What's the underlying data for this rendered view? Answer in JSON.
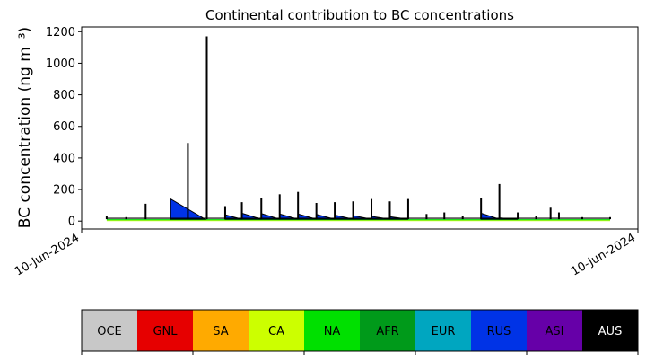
{
  "chart_data": {
    "type": "area",
    "title": "Continental contribution to BC concentrations",
    "ylabel": "BC concentration (ng m⁻³)",
    "xlabel": "",
    "ylim": [
      -50,
      1230
    ],
    "xlim": [
      0,
      1
    ],
    "y_ticks": [
      0,
      200,
      400,
      600,
      800,
      1000,
      1200
    ],
    "x_tick_labels": [
      "10-Jun-2024",
      "10-Jun-2024"
    ],
    "stack_order": [
      "OCE",
      "GNL",
      "SA",
      "CA",
      "NA",
      "AFR",
      "EUR",
      "RUS",
      "ASI",
      "AUS"
    ],
    "legend": {
      "placement": "bottom colorbar",
      "regions": [
        {
          "name": "OCE",
          "color": "#c8c8c8",
          "text_color": "#000000"
        },
        {
          "name": "GNL",
          "color": "#e60000",
          "text_color": "#000000"
        },
        {
          "name": "SA",
          "color": "#ffaa00",
          "text_color": "#000000"
        },
        {
          "name": "CA",
          "color": "#ccff00",
          "text_color": "#000000"
        },
        {
          "name": "NA",
          "color": "#00e000",
          "text_color": "#000000"
        },
        {
          "name": "AFR",
          "color": "#009a1a",
          "text_color": "#000000"
        },
        {
          "name": "EUR",
          "color": "#00a6c0",
          "text_color": "#000000"
        },
        {
          "name": "RUS",
          "color": "#0033e6",
          "text_color": "#000000"
        },
        {
          "name": "ASI",
          "color": "#6600a8",
          "text_color": "#000000"
        },
        {
          "name": "AUS",
          "color": "#000000",
          "text_color": "#ffffff"
        }
      ]
    },
    "total_peaks": [
      {
        "x": 0.045,
        "y": 30
      },
      {
        "x": 0.08,
        "y": 25
      },
      {
        "x": 0.115,
        "y": 110
      },
      {
        "x": 0.191,
        "y": 495
      },
      {
        "x": 0.225,
        "y": 1170
      },
      {
        "x": 0.258,
        "y": 95
      },
      {
        "x": 0.288,
        "y": 120
      },
      {
        "x": 0.323,
        "y": 145
      },
      {
        "x": 0.356,
        "y": 170
      },
      {
        "x": 0.389,
        "y": 185
      },
      {
        "x": 0.422,
        "y": 115
      },
      {
        "x": 0.455,
        "y": 120
      },
      {
        "x": 0.488,
        "y": 125
      },
      {
        "x": 0.521,
        "y": 140
      },
      {
        "x": 0.554,
        "y": 125
      },
      {
        "x": 0.587,
        "y": 140
      },
      {
        "x": 0.62,
        "y": 45
      },
      {
        "x": 0.652,
        "y": 55
      },
      {
        "x": 0.685,
        "y": 35
      },
      {
        "x": 0.718,
        "y": 145
      },
      {
        "x": 0.751,
        "y": 235
      },
      {
        "x": 0.784,
        "y": 55
      },
      {
        "x": 0.817,
        "y": 30
      },
      {
        "x": 0.843,
        "y": 85
      },
      {
        "x": 0.858,
        "y": 55
      },
      {
        "x": 0.9,
        "y": 25
      },
      {
        "x": 0.95,
        "y": 25
      }
    ],
    "rus_sawtooth": [
      {
        "start": 0.16,
        "end": 0.222,
        "peak": 140
      },
      {
        "start": 0.258,
        "end": 0.288,
        "peak": 40
      },
      {
        "start": 0.288,
        "end": 0.323,
        "peak": 50
      },
      {
        "start": 0.323,
        "end": 0.356,
        "peak": 48
      },
      {
        "start": 0.356,
        "end": 0.389,
        "peak": 45
      },
      {
        "start": 0.389,
        "end": 0.422,
        "peak": 45
      },
      {
        "start": 0.422,
        "end": 0.455,
        "peak": 42
      },
      {
        "start": 0.455,
        "end": 0.488,
        "peak": 38
      },
      {
        "start": 0.488,
        "end": 0.521,
        "peak": 35
      },
      {
        "start": 0.521,
        "end": 0.554,
        "peak": 30
      },
      {
        "start": 0.554,
        "end": 0.587,
        "peak": 28
      },
      {
        "start": 0.718,
        "end": 0.751,
        "peak": 50
      },
      {
        "start": 0.751,
        "end": 0.784,
        "peak": 20
      }
    ],
    "base_bands": {
      "green_level": 12,
      "yellow_level": 5
    }
  }
}
